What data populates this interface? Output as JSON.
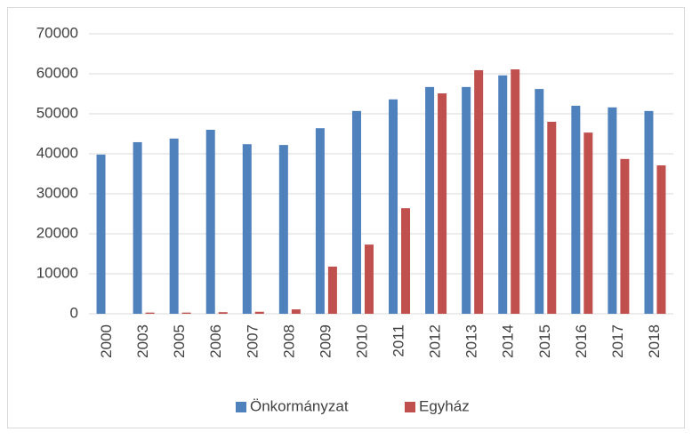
{
  "chart_data": {
    "type": "bar",
    "categories": [
      "2000",
      "2003",
      "2005",
      "2006",
      "2007",
      "2008",
      "2009",
      "2010",
      "2011",
      "2012",
      "2013",
      "2014",
      "2015",
      "2016",
      "2017",
      "2018"
    ],
    "series": [
      {
        "name": "Önkormányzat",
        "color": "#4f81bd",
        "values": [
          39800,
          42900,
          43800,
          46000,
          42400,
          42200,
          46400,
          50700,
          53600,
          56700,
          56700,
          59600,
          56200,
          52000,
          51600,
          50700
        ]
      },
      {
        "name": "Egyház",
        "color": "#c0504d",
        "values": [
          0,
          300,
          300,
          400,
          500,
          1100,
          11800,
          17300,
          26400,
          55100,
          60900,
          61100,
          48000,
          45300,
          38700,
          37100
        ]
      }
    ],
    "ylim": [
      0,
      70000
    ],
    "yticks": [
      0,
      10000,
      20000,
      30000,
      40000,
      50000,
      60000,
      70000
    ],
    "grid": true,
    "legend": "bottom"
  }
}
